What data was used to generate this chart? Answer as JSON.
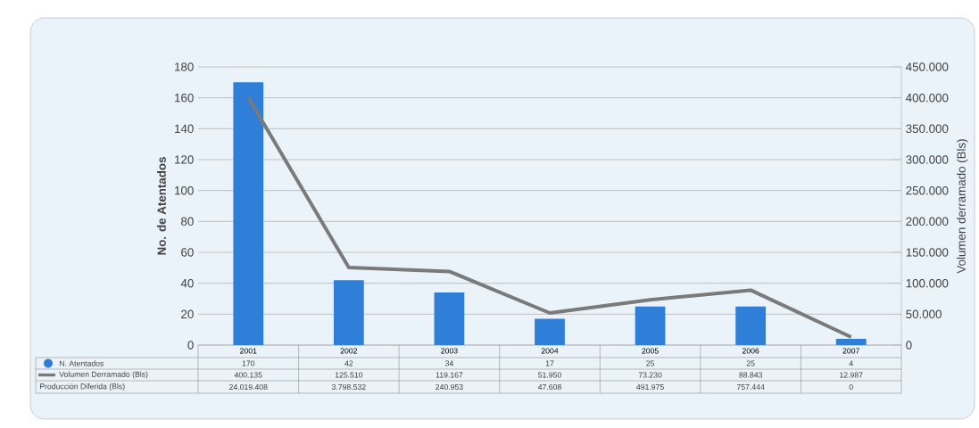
{
  "chart_data": {
    "type": "bar",
    "ylabel": "No. de Atentados",
    "y2label": "Volumen derramado (Bls)",
    "categories": [
      "2001",
      "2002",
      "2003",
      "2004",
      "2005",
      "2006",
      "2007"
    ],
    "series": [
      {
        "name": "N. Atentados",
        "color": "#2f7fd8",
        "values": [
          170,
          42,
          34,
          17,
          25,
          25,
          4
        ],
        "value_labels": [
          "170",
          "42",
          "34",
          "17",
          "25",
          "25",
          "4"
        ]
      },
      {
        "name": "Volumen Derramado (Bls)",
        "type": "line",
        "axis": "y2",
        "color": "#7a7a7a",
        "values": [
          400135,
          125510,
          119167,
          51950,
          73230,
          88843,
          12987
        ],
        "value_labels": [
          "400.135",
          "125.510",
          "119.167",
          "51.950",
          "73.230",
          "88.843",
          "12.987"
        ]
      }
    ],
    "ylim": [
      0,
      180
    ],
    "yticks": [
      0,
      20,
      40,
      60,
      80,
      100,
      120,
      140,
      160,
      180
    ],
    "y2lim": [
      0,
      450000
    ],
    "y2ticks": [
      0,
      {
        "value": 50000,
        "label": "50.000"
      },
      {
        "value": 100000,
        "label": "100.000"
      },
      {
        "value": 150000,
        "label": "150.000"
      },
      {
        "value": 200000,
        "label": "200.000"
      },
      {
        "value": 250000,
        "label": "250.000"
      },
      {
        "value": 300000,
        "label": "300.000"
      },
      {
        "value": 350000,
        "label": "350.000"
      },
      {
        "value": 400000,
        "label": "400.000"
      },
      {
        "value": 450000,
        "label": "450.000"
      }
    ],
    "grid": "y",
    "legend": "bottom left",
    "annotations": [
      "Producción Diferida (Bls)",
      "24.019.408",
      "3.798.532",
      "240.953",
      "47.608",
      "491.975",
      "757.444",
      "0"
    ]
  }
}
